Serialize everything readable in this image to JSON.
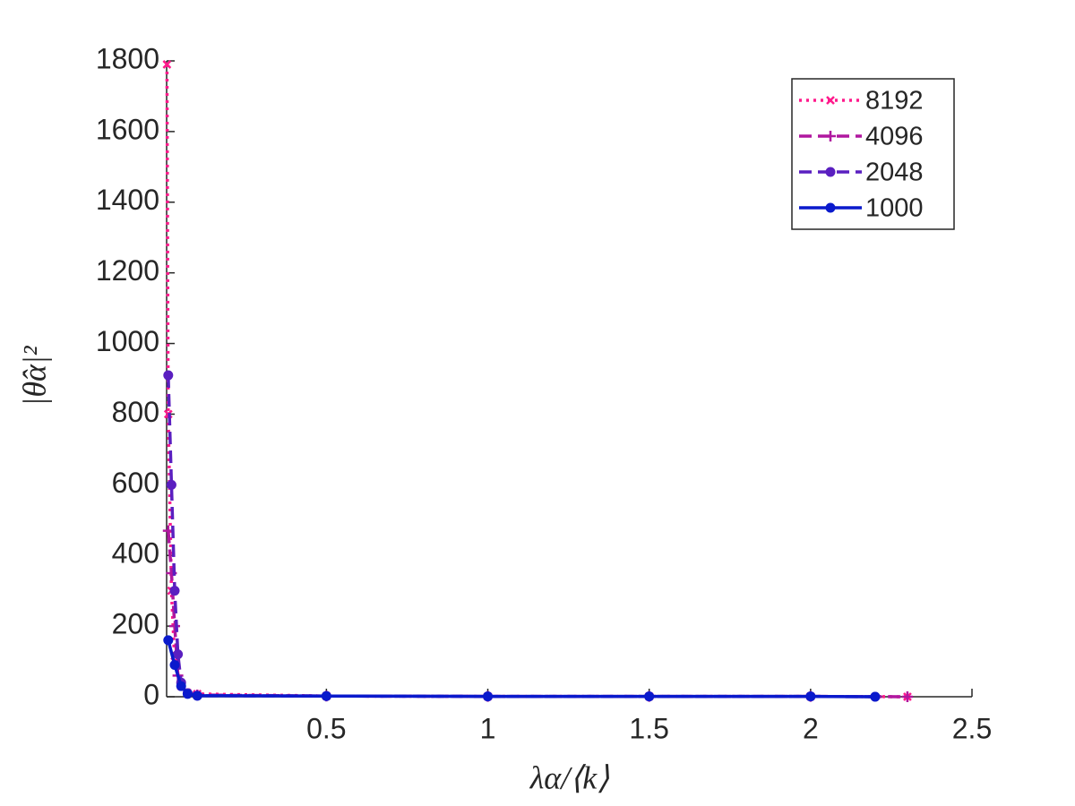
{
  "chart_data": {
    "type": "line",
    "xlabel": "λα/⟨k⟩",
    "ylabel": "|θ̂α|²",
    "xlim": [
      0.005,
      2.5
    ],
    "ylim": [
      0,
      1800
    ],
    "xticks": [
      0.5,
      1,
      1.5,
      2,
      2.5
    ],
    "yticks": [
      0,
      200,
      400,
      600,
      800,
      1000,
      1200,
      1400,
      1600,
      1800
    ],
    "legend": "upper-right",
    "series": [
      {
        "name": "8192",
        "color": "#ff1a8c",
        "dash": "dotted",
        "marker": "x",
        "x": [
          0.006,
          0.01,
          0.02,
          0.03,
          0.05,
          0.1,
          0.5,
          1,
          1.5,
          2,
          2.3
        ],
        "values": [
          1790,
          800,
          300,
          100,
          30,
          8,
          2,
          1,
          1,
          1,
          0
        ]
      },
      {
        "name": "4096",
        "color": "#b0179f",
        "dash": "dashed",
        "marker": "+",
        "x": [
          0.01,
          0.02,
          0.03,
          0.04,
          0.06,
          0.1,
          0.5,
          1,
          1.5,
          2,
          2.3
        ],
        "values": [
          470,
          350,
          200,
          60,
          20,
          5,
          2,
          1,
          1,
          1,
          0
        ]
      },
      {
        "name": "2048",
        "color": "#5a1fc0",
        "dash": "dashed",
        "marker": "o",
        "x": [
          0.01,
          0.02,
          0.03,
          0.04,
          0.05,
          0.07,
          0.1,
          0.5,
          1,
          1.5,
          2,
          2.2
        ],
        "values": [
          910,
          600,
          300,
          120,
          40,
          10,
          3,
          2,
          1,
          1,
          1,
          0
        ]
      },
      {
        "name": "1000",
        "color": "#0a1acc",
        "dash": "solid",
        "marker": "o",
        "x": [
          0.01,
          0.03,
          0.05,
          0.07,
          0.1,
          0.5,
          1,
          1.5,
          2,
          2.2
        ],
        "values": [
          160,
          90,
          30,
          8,
          3,
          2,
          1,
          1,
          1,
          0
        ]
      }
    ]
  }
}
